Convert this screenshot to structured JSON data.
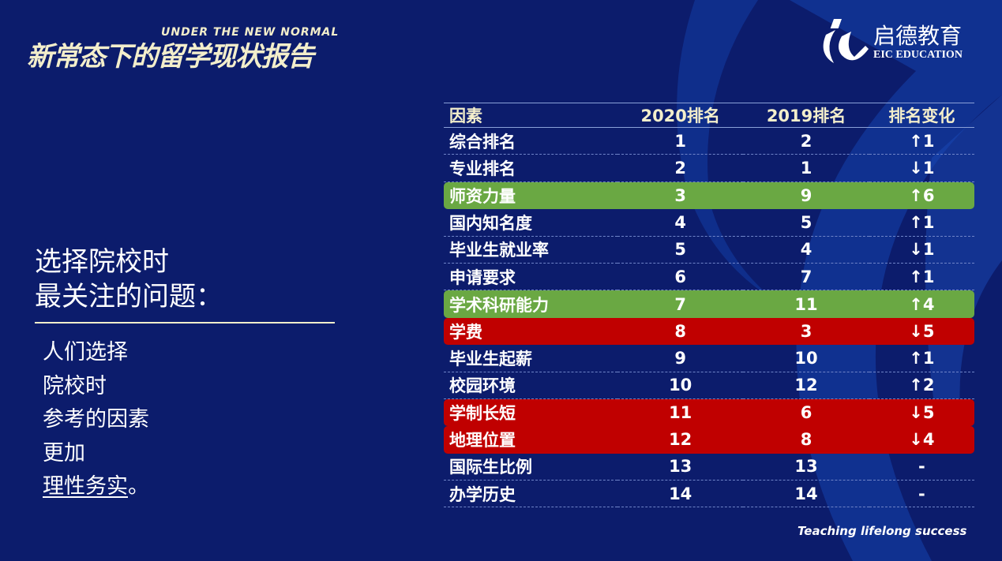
{
  "header": {
    "title_cn": "新常态下的留学现状报告",
    "title_en": "UNDER THE NEW NORMAL"
  },
  "logo": {
    "name": "启德教育",
    "name_en": "EIC EDUCATION"
  },
  "left": {
    "heading_1": "选择院校时",
    "heading_2": "最关注的问题：",
    "body": [
      "人们选择",
      "院校时",
      "参考的因素",
      "更加"
    ],
    "emphasis": "理性务实",
    "emphasis_end": "。"
  },
  "table": {
    "headers": [
      "因素",
      "2020排名",
      "2019排名",
      "排名变化"
    ],
    "rows": [
      {
        "factor": "综合排名",
        "r2020": "1",
        "r2019": "2",
        "change": "↑1",
        "highlight": ""
      },
      {
        "factor": "专业排名",
        "r2020": "2",
        "r2019": "1",
        "change": "↓1",
        "highlight": ""
      },
      {
        "factor": "师资力量",
        "r2020": "3",
        "r2019": "9",
        "change": "↑6",
        "highlight": "green"
      },
      {
        "factor": "国内知名度",
        "r2020": "4",
        "r2019": "5",
        "change": "↑1",
        "highlight": ""
      },
      {
        "factor": "毕业生就业率",
        "r2020": "5",
        "r2019": "4",
        "change": "↓1",
        "highlight": ""
      },
      {
        "factor": "申请要求",
        "r2020": "6",
        "r2019": "7",
        "change": "↑1",
        "highlight": ""
      },
      {
        "factor": "学术科研能力",
        "r2020": "7",
        "r2019": "11",
        "change": "↑4",
        "highlight": "green"
      },
      {
        "factor": "学费",
        "r2020": "8",
        "r2019": "3",
        "change": "↓5",
        "highlight": "red"
      },
      {
        "factor": "毕业生起薪",
        "r2020": "9",
        "r2019": "10",
        "change": "↑1",
        "highlight": ""
      },
      {
        "factor": "校园环境",
        "r2020": "10",
        "r2019": "12",
        "change": "↑2",
        "highlight": ""
      },
      {
        "factor": "学制长短",
        "r2020": "11",
        "r2019": "6",
        "change": "↓5",
        "highlight": "red"
      },
      {
        "factor": "地理位置",
        "r2020": "12",
        "r2019": "8",
        "change": "↓4",
        "highlight": "red"
      },
      {
        "factor": "国际生比例",
        "r2020": "13",
        "r2019": "13",
        "change": "-",
        "highlight": ""
      },
      {
        "factor": "办学历史",
        "r2020": "14",
        "r2019": "14",
        "change": "-",
        "highlight": ""
      }
    ]
  },
  "colors": {
    "background": "#0c1c6c",
    "green": "#6aa843",
    "red": "#c00000",
    "cream": "#f3eecb"
  },
  "footer": {
    "slogan": "Teaching lifelong success"
  }
}
